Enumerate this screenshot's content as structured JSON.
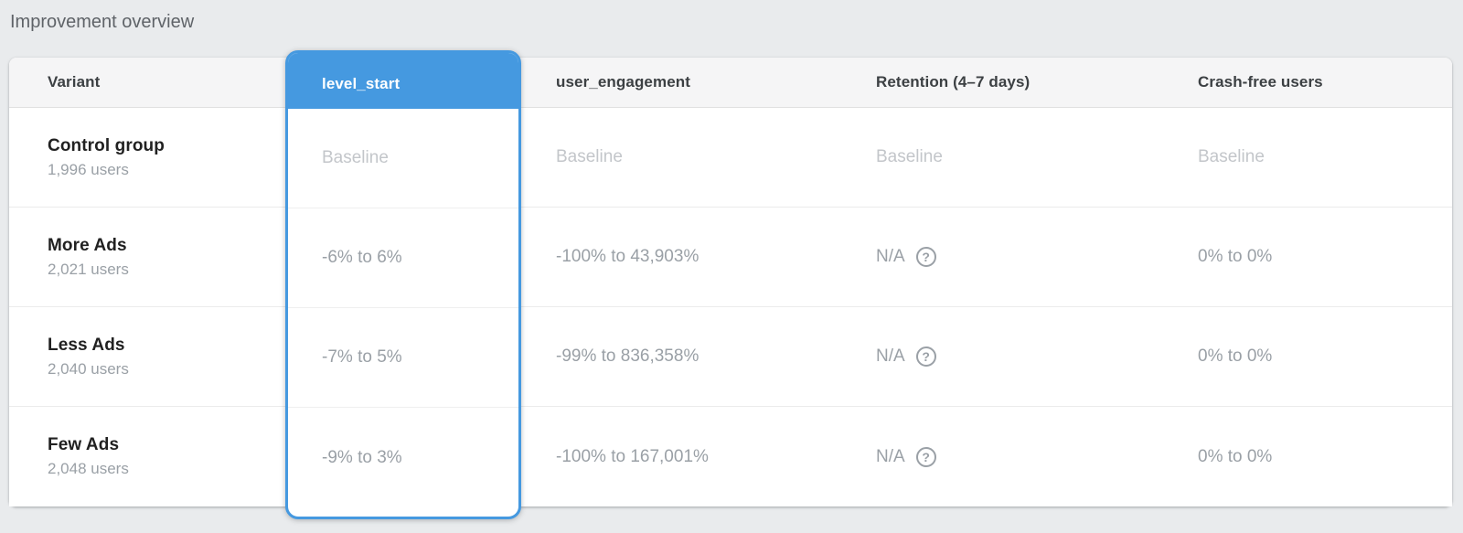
{
  "page": {
    "title": "Improvement overview"
  },
  "colors": {
    "accent_blue": "#4599e0"
  },
  "icons": {
    "help": "?"
  },
  "table": {
    "columns": [
      {
        "label": "Variant",
        "highlighted": false
      },
      {
        "label": "level_start",
        "highlighted": true
      },
      {
        "label": "user_engagement",
        "highlighted": false
      },
      {
        "label": "Retention (4–7 days)",
        "highlighted": false
      },
      {
        "label": "Crash-free users",
        "highlighted": false
      }
    ],
    "rows": [
      {
        "variant": "Control group",
        "users": "1,996 users",
        "level_start": "Baseline",
        "user_engagement": "Baseline",
        "retention": "Baseline",
        "retention_icon": false,
        "crash_free": "Baseline",
        "baseline": true
      },
      {
        "variant": "More Ads",
        "users": "2,021 users",
        "level_start": "-6% to 6%",
        "user_engagement": "-100% to 43,903%",
        "retention": "N/A",
        "retention_icon": true,
        "crash_free": "0% to 0%",
        "baseline": false
      },
      {
        "variant": "Less Ads",
        "users": "2,040 users",
        "level_start": "-7% to 5%",
        "user_engagement": "-99% to 836,358%",
        "retention": "N/A",
        "retention_icon": true,
        "crash_free": "0% to 0%",
        "baseline": false
      },
      {
        "variant": "Few Ads",
        "users": "2,048 users",
        "level_start": "-9% to 3%",
        "user_engagement": "-100% to 167,001%",
        "retention": "N/A",
        "retention_icon": true,
        "crash_free": "0% to 0%",
        "baseline": false
      }
    ]
  }
}
